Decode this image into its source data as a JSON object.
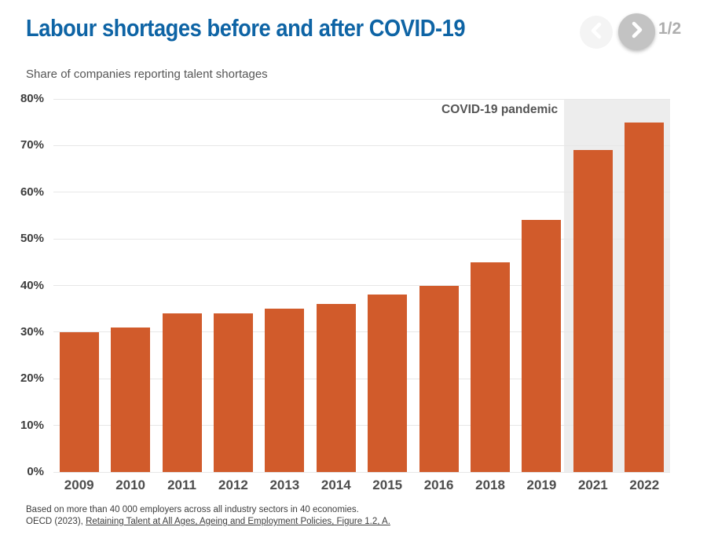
{
  "header": {
    "title": "Labour shortages before and after COVID-19",
    "pagination": {
      "count_label": "1/2",
      "prev_icon": "chevron-left-icon",
      "next_icon": "chevron-right-icon"
    }
  },
  "chart_data": {
    "type": "bar",
    "title": "Labour shortages before and after COVID-19",
    "subtitle": "Share of companies reporting talent shortages",
    "categories": [
      "2009",
      "2010",
      "2011",
      "2012",
      "2013",
      "2014",
      "2015",
      "2016",
      "2018",
      "2019",
      "2021",
      "2022"
    ],
    "values": [
      30,
      31,
      34,
      34,
      35,
      36,
      38,
      40,
      45,
      54,
      69,
      75
    ],
    "xlabel": "",
    "ylabel": "Share of companies reporting talent shortages",
    "ylim": [
      0,
      80
    ],
    "ytick_step": 10,
    "ytick_suffix": "%",
    "grid": "horizontal",
    "legend": "none",
    "annotation": {
      "label": "COVID-19 pandemic",
      "region_categories": [
        "2021",
        "2022"
      ]
    },
    "colors": {
      "bar": "#d15b2b",
      "region": "#ededed",
      "grid": "#e7e7e7",
      "title": "#0e64a5"
    }
  },
  "footer": {
    "note": "Based on more than 40 000 employers across all industry sectors in 40 economies.",
    "source_prefix": "OECD (2023), ",
    "source_link": "Retaining Talent at All Ages, Ageing and Employment Policies, Figure 1.2, A."
  }
}
